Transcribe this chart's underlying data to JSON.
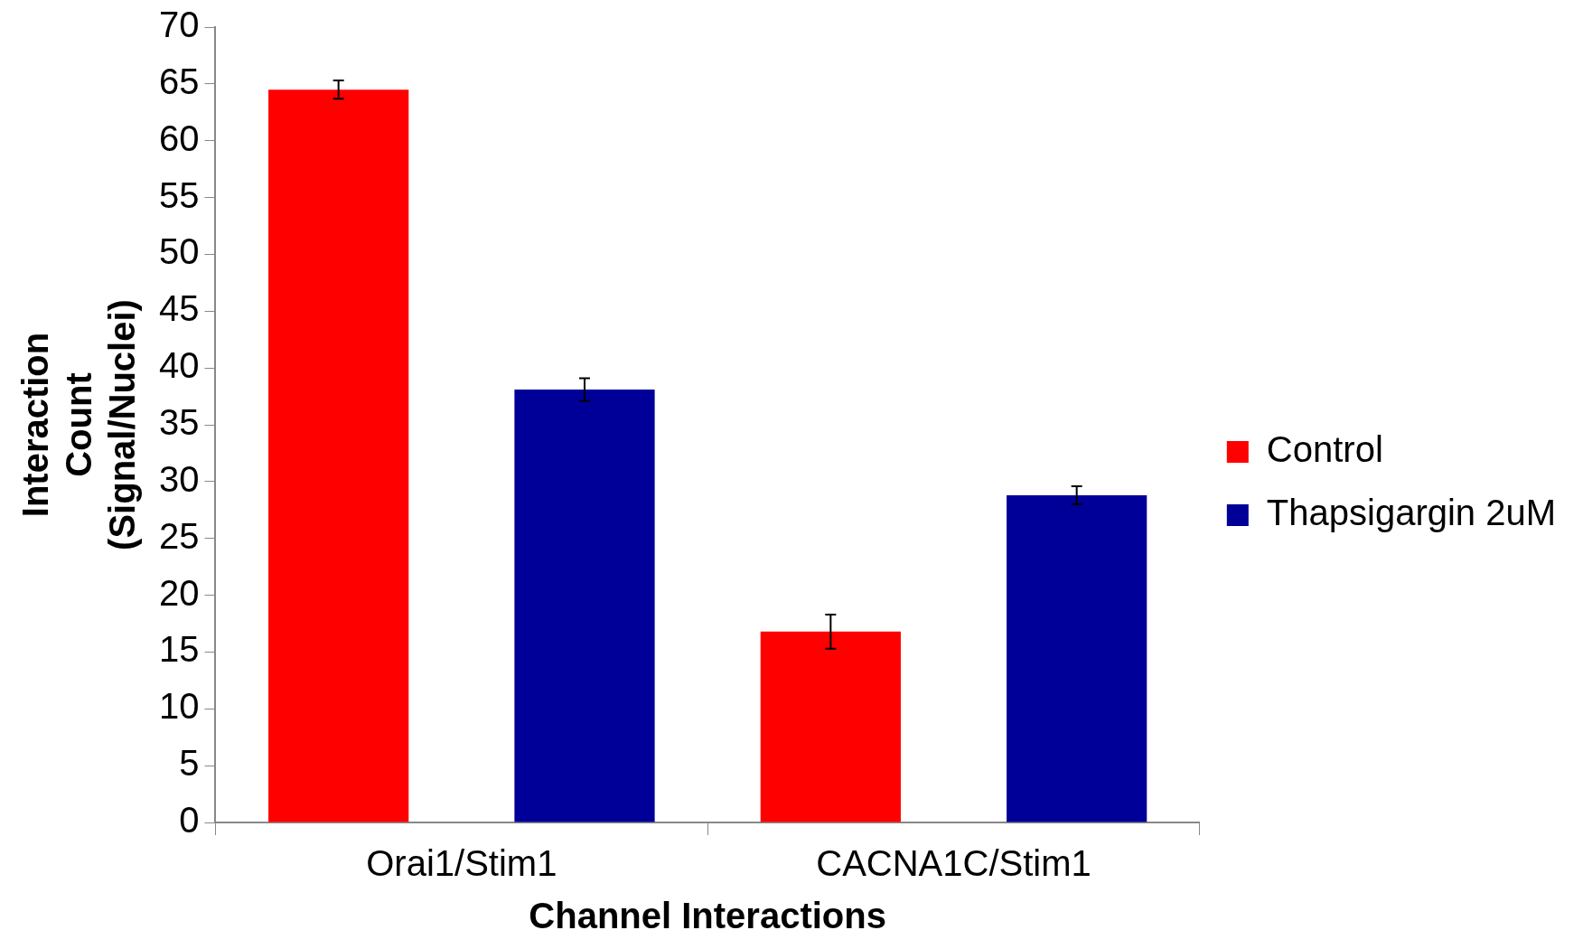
{
  "chart_data": {
    "type": "bar",
    "xlabel": "Channel Interactions",
    "ylabel": "Interaction Count (Signal/Nuclei)",
    "categories": [
      "Orai1/Stim1",
      "CACNA1C/Stim1"
    ],
    "series": [
      {
        "name": "Control",
        "color": "#ff0000",
        "values": [
          64.5,
          16.8
        ],
        "errors": [
          0.8,
          1.5
        ]
      },
      {
        "name": "Thapsigargin 2uM",
        "color": "#000099",
        "values": [
          38.1,
          28.8
        ],
        "errors": [
          1.0,
          0.8
        ]
      }
    ],
    "ylim": [
      0,
      70
    ],
    "yticks": [
      0,
      5,
      10,
      15,
      20,
      25,
      30,
      35,
      40,
      45,
      50,
      55,
      60,
      65,
      70
    ],
    "grid": false,
    "legend": "right"
  }
}
